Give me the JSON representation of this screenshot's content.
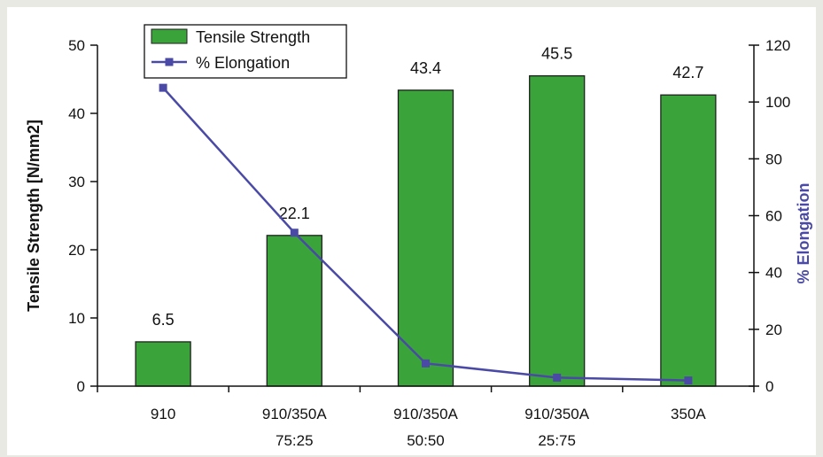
{
  "chart_data": {
    "type": "bar",
    "categories": [
      [
        "910"
      ],
      [
        "910/350A",
        "75:25"
      ],
      [
        "910/350A",
        "50:50"
      ],
      [
        "910/350A",
        "25:75"
      ],
      [
        "350A"
      ]
    ],
    "series": [
      {
        "name": "Tensile Strength",
        "type": "bar",
        "axis": "left",
        "values": [
          6.5,
          22.1,
          43.4,
          45.5,
          42.7
        ],
        "labels": [
          "6.5",
          "22.1",
          "43.4",
          "45.5",
          "42.7"
        ],
        "color": "#3aa33a"
      },
      {
        "name": "% Elongation",
        "type": "line",
        "axis": "right",
        "values": [
          105,
          54,
          8,
          3,
          2
        ],
        "color": "#4a4aa6"
      }
    ],
    "ylabel": "Tensile Strength [N/mm2]",
    "y2label": "% Elongation",
    "ylim": [
      0,
      50
    ],
    "y2lim": [
      0,
      120
    ],
    "yticks": [
      0,
      10,
      20,
      30,
      40,
      50
    ],
    "y2ticks": [
      0,
      20,
      40,
      60,
      80,
      100,
      120
    ],
    "legend_position": "top-left",
    "grid": false
  }
}
